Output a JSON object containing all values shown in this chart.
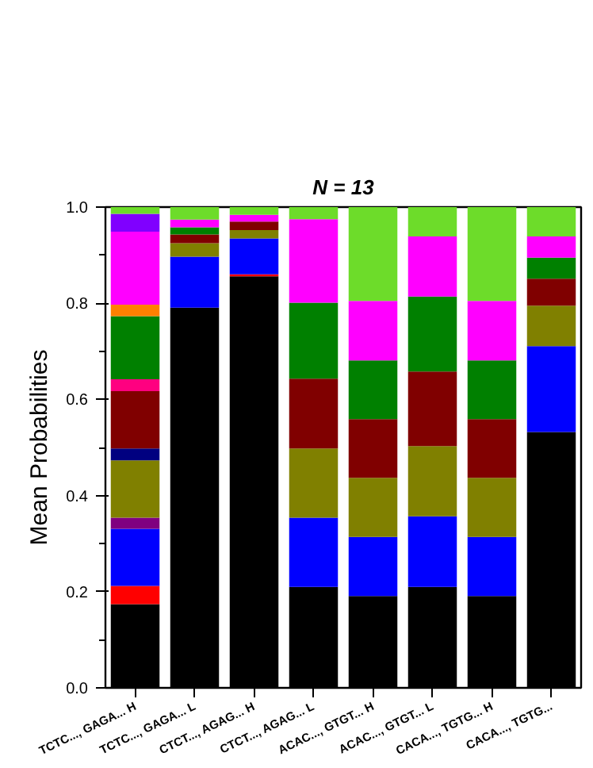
{
  "chart_data": {
    "type": "bar",
    "stacked": true,
    "title": "N = 13",
    "ylabel": "Mean Probabilities",
    "categories": [
      "TCTC..., GAGA... H",
      "TCTC..., GAGA... L",
      "CTCT..., AGAG... H",
      "CTCT..., AGAG... L",
      "ACAC..., GTGT... H",
      "ACAC..., GTGT... L",
      "CACA..., TGTG... H",
      "CACA..., TGTG..."
    ],
    "ylim": [
      0,
      1
    ],
    "yticks": [
      {
        "value": 0,
        "label": "0.0"
      },
      {
        "value": 0.2,
        "label": "0.2"
      },
      {
        "value": 0.4,
        "label": "0.4"
      },
      {
        "value": 0.6,
        "label": "0.6"
      },
      {
        "value": 0.8,
        "label": "0.8"
      },
      {
        "value": 1,
        "label": "1.0"
      }
    ],
    "grid": false,
    "series": [
      {
        "color": "#000000",
        "values": [
          0.174,
          0.791,
          0.856,
          0.21,
          0.191,
          0.21,
          0.191,
          0.532
        ]
      },
      {
        "color": "#ff0000",
        "values": [
          0.038,
          null,
          0.004,
          null,
          null,
          null,
          null,
          null
        ]
      },
      {
        "color": "#0000ff",
        "values": [
          0.119,
          0.106,
          0.075,
          0.144,
          0.123,
          0.147,
          0.123,
          0.179
        ]
      },
      {
        "color": "#800080",
        "values": [
          0.023,
          null,
          null,
          null,
          null,
          null,
          null,
          null
        ]
      },
      {
        "color": "#808000",
        "values": [
          0.119,
          0.028,
          0.017,
          0.144,
          0.123,
          0.146,
          0.123,
          0.084
        ]
      },
      {
        "color": "#000080",
        "values": [
          0.025,
          null,
          null,
          null,
          null,
          null,
          null,
          null
        ]
      },
      {
        "color": "#800000",
        "values": [
          0.119,
          0.018,
          0.018,
          0.145,
          0.122,
          0.155,
          0.122,
          0.056
        ]
      },
      {
        "color": "#ff0080",
        "values": [
          0.025,
          null,
          null,
          null,
          null,
          null,
          null,
          null
        ]
      },
      {
        "color": "#008000",
        "values": [
          0.131,
          0.015,
          null,
          0.158,
          0.122,
          0.156,
          0.122,
          0.044
        ]
      },
      {
        "color": "#ff8000",
        "values": [
          0.024,
          null,
          null,
          null,
          null,
          null,
          null,
          null
        ]
      },
      {
        "color": "#ff00ff",
        "values": [
          0.152,
          0.016,
          0.014,
          0.174,
          0.124,
          0.125,
          0.124,
          0.044
        ]
      },
      {
        "color": "#8000ff",
        "values": [
          0.037,
          null,
          null,
          null,
          null,
          null,
          null,
          null
        ]
      },
      {
        "color": "#6ddc2a",
        "values": [
          0.014,
          0.026,
          0.016,
          0.025,
          0.195,
          0.061,
          0.195,
          0.061
        ]
      }
    ]
  }
}
